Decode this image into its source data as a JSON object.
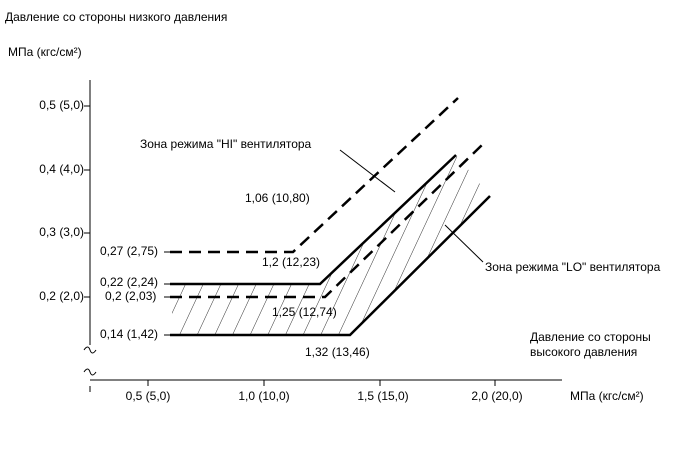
{
  "title": "Давление со стороны низкого давления",
  "y_unit": "МПа (кгс/см²)",
  "y_ticks": [
    "0,5 (5,0)",
    "0,4 (4,0)",
    "0,3 (3,0)",
    "0,2 (2,0)"
  ],
  "x_ticks": [
    "0,5 (5,0)",
    "1,0 (10,0)",
    "1,5 (15,0)",
    "2,0 (20,0)"
  ],
  "x_unit": "МПа (кгс/см²)",
  "x_label": [
    "Давление со стороны",
    "высокого давления"
  ],
  "left_labels": [
    "0,27 (2,75)",
    "0,22 (2,24)",
    "0,2 (2,03)",
    "0,14 (1,42)"
  ],
  "corner_labels": [
    "1,06 (10,80)",
    "1,2 (12,23)",
    "1,25 (12,74)",
    "1,32 (13,46)"
  ],
  "zones": [
    "Зона режима \"HI\" вентилятора",
    "Зона режима \"LO\" вентилятора"
  ]
}
